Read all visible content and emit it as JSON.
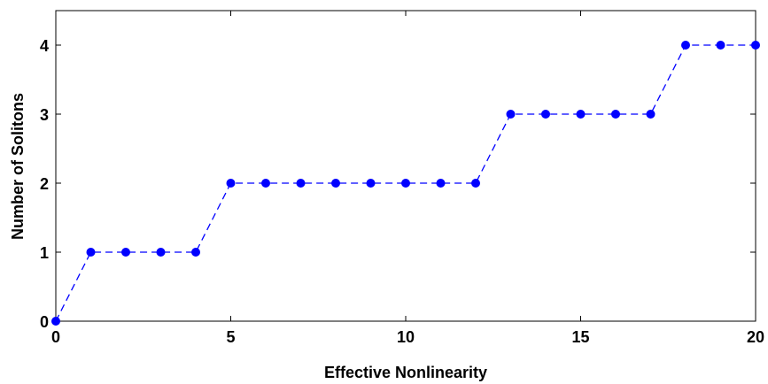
{
  "chart_data": {
    "type": "line",
    "title": "",
    "xlabel": "Effective Nonlinearity",
    "ylabel": "Number of Solitons",
    "xlim": [
      0,
      20
    ],
    "ylim": [
      0,
      4.5
    ],
    "x_ticks": [
      0,
      5,
      10,
      15,
      20
    ],
    "y_ticks": [
      0,
      1,
      2,
      3,
      4
    ],
    "grid": false,
    "legend": "none",
    "series": [
      {
        "line_style": "dashed",
        "marker": "filled-circle",
        "color": "#0000ff",
        "x": [
          0,
          1,
          2,
          3,
          4,
          5,
          6,
          7,
          8,
          9,
          10,
          11,
          12,
          13,
          14,
          15,
          16,
          17,
          18,
          19,
          20
        ],
        "y": [
          0,
          1,
          1,
          1,
          1,
          2,
          2,
          2,
          2,
          2,
          2,
          2,
          2,
          3,
          3,
          3,
          3,
          3,
          4,
          4,
          4
        ]
      }
    ]
  }
}
